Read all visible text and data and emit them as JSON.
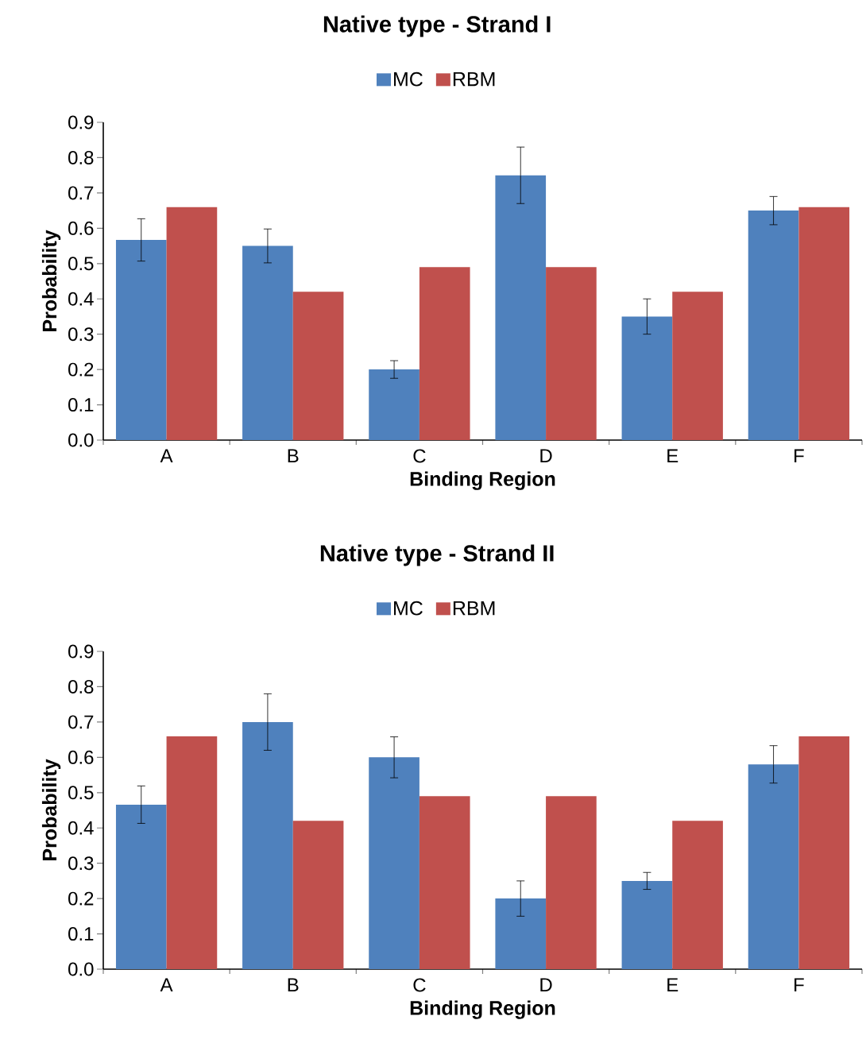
{
  "chart_data": [
    {
      "type": "bar",
      "title": "Native type - Strand I",
      "xlabel": "Binding Region",
      "ylabel": "Probability",
      "categories": [
        "A",
        "B",
        "C",
        "D",
        "E",
        "F"
      ],
      "series": [
        {
          "name": "MC",
          "color": "#4f81bd",
          "values": [
            0.567,
            0.55,
            0.2,
            0.75,
            0.35,
            0.65
          ],
          "errors": [
            0.06,
            0.048,
            0.025,
            0.08,
            0.05,
            0.04
          ]
        },
        {
          "name": "RBM",
          "color": "#c0504d",
          "values": [
            0.66,
            0.42,
            0.49,
            0.49,
            0.42,
            0.66
          ]
        }
      ],
      "ylim": [
        0,
        0.9
      ],
      "yticks": [
        {
          "value": 0,
          "label": "0.0"
        },
        {
          "value": 0.1,
          "label": "0.1"
        },
        {
          "value": 0.2,
          "label": "0.2"
        },
        {
          "value": 0.3,
          "label": "0.3"
        },
        {
          "value": 0.4,
          "label": "0.4"
        },
        {
          "value": 0.5,
          "label": "0.5"
        },
        {
          "value": 0.6,
          "label": "0.6"
        },
        {
          "value": 0.7,
          "label": "0.7"
        },
        {
          "value": 0.8,
          "label": "0.8"
        },
        {
          "value": 0.9,
          "label": "0.9"
        }
      ],
      "legend": "top"
    },
    {
      "type": "bar",
      "title": "Native type - Strand II",
      "xlabel": "Binding Region",
      "ylabel": "Probability",
      "categories": [
        "A",
        "B",
        "C",
        "D",
        "E",
        "F"
      ],
      "series": [
        {
          "name": "MC",
          "color": "#4f81bd",
          "values": [
            0.466,
            0.7,
            0.6,
            0.2,
            0.25,
            0.58
          ],
          "errors": [
            0.053,
            0.08,
            0.058,
            0.05,
            0.024,
            0.053
          ]
        },
        {
          "name": "RBM",
          "color": "#c0504d",
          "values": [
            0.66,
            0.42,
            0.49,
            0.49,
            0.42,
            0.66
          ]
        }
      ],
      "ylim": [
        0,
        0.9
      ],
      "yticks": [
        {
          "value": 0,
          "label": "0.0"
        },
        {
          "value": 0.1,
          "label": "0.1"
        },
        {
          "value": 0.2,
          "label": "0.2"
        },
        {
          "value": 0.3,
          "label": "0.3"
        },
        {
          "value": 0.4,
          "label": "0.4"
        },
        {
          "value": 0.5,
          "label": "0.5"
        },
        {
          "value": 0.6,
          "label": "0.6"
        },
        {
          "value": 0.7,
          "label": "0.7"
        },
        {
          "value": 0.8,
          "label": "0.8"
        },
        {
          "value": 0.9,
          "label": "0.9"
        }
      ],
      "legend": "top"
    }
  ]
}
